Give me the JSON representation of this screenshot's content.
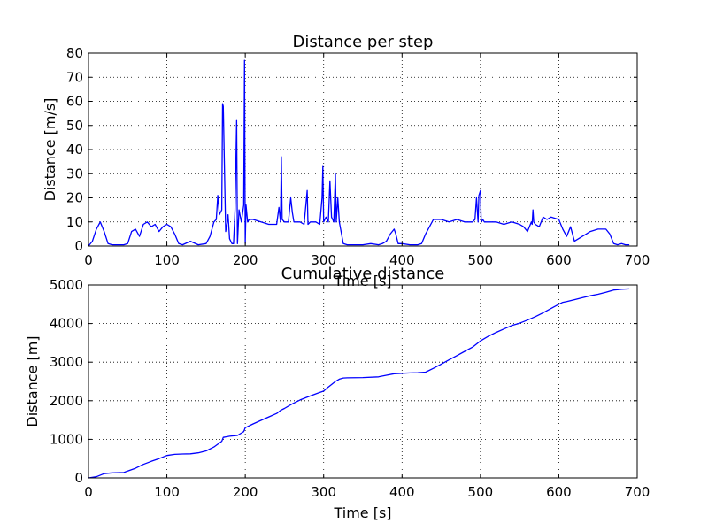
{
  "chart_data": [
    {
      "type": "line",
      "title": "Distance per step",
      "xlabel": "Time [s]",
      "ylabel": "Distance [m/s]",
      "xlim": [
        0,
        700
      ],
      "ylim": [
        0,
        80
      ],
      "xticks": [
        0,
        100,
        200,
        300,
        400,
        500,
        600,
        700
      ],
      "yticks": [
        0,
        10,
        20,
        30,
        40,
        50,
        60,
        70,
        80
      ],
      "grid": true,
      "color": "#0000ff",
      "series": [
        {
          "x": [
            0,
            5,
            10,
            15,
            20,
            25,
            30,
            35,
            40,
            45,
            50,
            55,
            60,
            65,
            70,
            75,
            80,
            85,
            90,
            95,
            100,
            105,
            110,
            115,
            120,
            130,
            140,
            150,
            155,
            160,
            163,
            165,
            167,
            170,
            171,
            172,
            175,
            177,
            178,
            180,
            183,
            185,
            187,
            189,
            190,
            192,
            195,
            198,
            199,
            200,
            201,
            203,
            205,
            210,
            220,
            230,
            240,
            243,
            245,
            246,
            247,
            250,
            255,
            258,
            260,
            262,
            265,
            270,
            275,
            279,
            280,
            283,
            285,
            290,
            295,
            298,
            299,
            300,
            303,
            306,
            308,
            310,
            313,
            315,
            316,
            318,
            320,
            325,
            330,
            340,
            350,
            360,
            370,
            375,
            380,
            385,
            390,
            392,
            395,
            400,
            410,
            420,
            425,
            430,
            440,
            450,
            460,
            470,
            480,
            490,
            493,
            495,
            497,
            498,
            500,
            501,
            503,
            505,
            510,
            520,
            530,
            540,
            550,
            555,
            560,
            565,
            566,
            567,
            568,
            570,
            575,
            580,
            585,
            590,
            600,
            605,
            610,
            615,
            620,
            625,
            630,
            635,
            640,
            650,
            660,
            665,
            670,
            675,
            680,
            685,
            690
          ],
          "values": [
            0,
            2,
            7,
            10,
            6,
            1,
            0.5,
            0.5,
            0.5,
            0.5,
            1,
            6,
            7,
            4,
            9,
            10,
            8,
            9,
            6,
            8,
            9,
            8,
            5,
            1,
            0.5,
            2,
            0.5,
            1,
            4,
            10,
            11,
            21,
            13,
            15,
            59,
            58,
            6,
            10,
            13,
            3,
            1,
            1,
            15,
            52,
            1,
            15,
            10,
            17,
            77,
            1,
            17,
            10,
            11,
            11,
            10,
            9,
            9,
            16,
            10,
            37,
            11,
            10,
            10,
            20,
            14,
            10,
            10,
            10,
            9,
            23,
            9,
            10,
            10,
            10,
            9,
            20,
            33,
            10,
            12,
            10,
            27,
            12,
            10,
            30,
            10,
            20,
            10,
            1,
            0.5,
            0.5,
            0.5,
            1,
            0.5,
            1,
            2,
            5,
            7,
            5,
            1,
            1,
            0.5,
            0.5,
            1,
            5,
            11,
            11,
            10,
            11,
            10,
            10,
            11,
            20,
            10,
            21,
            23,
            10,
            11,
            10,
            10,
            10,
            9,
            10,
            9,
            8,
            6,
            10,
            9,
            15,
            10,
            9,
            8,
            12,
            11,
            12,
            11,
            7,
            4,
            8,
            2,
            3,
            4,
            5,
            6,
            7,
            7,
            5,
            1,
            0.5,
            1,
            0.5,
            0.5
          ]
        }
      ]
    },
    {
      "type": "line",
      "title": "Cumulative distance",
      "xlabel": "Time [s]",
      "ylabel": "Distance [m]",
      "xlim": [
        0,
        700
      ],
      "ylim": [
        0,
        5000
      ],
      "xticks": [
        0,
        100,
        200,
        300,
        400,
        500,
        600,
        700
      ],
      "yticks": [
        0,
        1000,
        2000,
        3000,
        4000,
        5000
      ],
      "grid": true,
      "color": "#0000ff",
      "series": [
        {
          "x": [
            0,
            10,
            20,
            30,
            45,
            50,
            60,
            70,
            80,
            90,
            100,
            110,
            120,
            130,
            140,
            150,
            160,
            170,
            172,
            180,
            190,
            198,
            200,
            210,
            220,
            230,
            240,
            245,
            250,
            260,
            270,
            280,
            290,
            300,
            305,
            310,
            315,
            320,
            325,
            330,
            350,
            370,
            380,
            390,
            400,
            410,
            420,
            430,
            440,
            450,
            460,
            470,
            480,
            490,
            500,
            510,
            520,
            530,
            540,
            550,
            560,
            570,
            580,
            590,
            600,
            605,
            610,
            620,
            630,
            640,
            650,
            660,
            670,
            680,
            690
          ],
          "values": [
            0,
            30,
            110,
            130,
            140,
            180,
            250,
            350,
            430,
            500,
            580,
            610,
            620,
            625,
            650,
            700,
            800,
            950,
            1050,
            1080,
            1100,
            1200,
            1300,
            1400,
            1490,
            1580,
            1670,
            1750,
            1800,
            1920,
            2020,
            2100,
            2180,
            2250,
            2340,
            2420,
            2500,
            2560,
            2590,
            2595,
            2600,
            2620,
            2660,
            2700,
            2710,
            2720,
            2725,
            2740,
            2840,
            2950,
            3060,
            3170,
            3280,
            3390,
            3550,
            3670,
            3770,
            3860,
            3950,
            4010,
            4090,
            4180,
            4280,
            4390,
            4500,
            4550,
            4570,
            4620,
            4670,
            4720,
            4760,
            4810,
            4870,
            4890,
            4900
          ]
        }
      ]
    }
  ]
}
